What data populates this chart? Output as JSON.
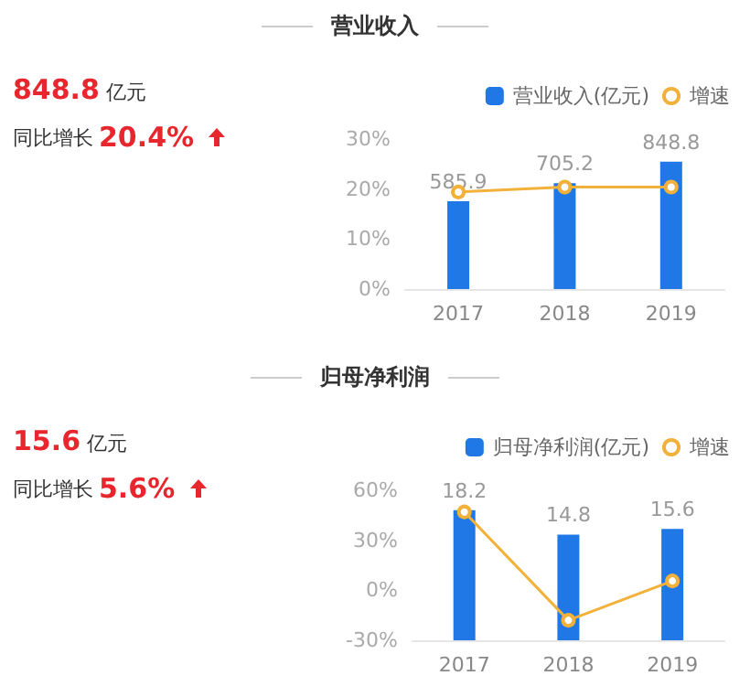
{
  "chart_data": [
    {
      "type": "bar",
      "title": "营业收入",
      "annotations": [
        "848.8 亿元",
        "同比增长 20.4%"
      ],
      "categories": [
        "2017",
        "2018",
        "2019"
      ],
      "legend": "top right",
      "grid": false,
      "ylim": [
        0,
        30
      ],
      "yticks": [
        {
          "value": 0,
          "label": "0%"
        },
        {
          "value": 10,
          "label": "10%"
        },
        {
          "value": 20,
          "label": "20%"
        },
        {
          "value": 30,
          "label": "30%"
        }
      ],
      "series": [
        {
          "name": "营业收入(亿元)",
          "color": "#1f78e6",
          "axis": "y2",
          "values": [
            585.9,
            705.2,
            848.8
          ],
          "value_labels": [
            "585.9",
            "705.2",
            "848.8"
          ]
        },
        {
          "type": "line",
          "name": "增速",
          "color": "#f2b13a",
          "marker": "circle",
          "values": [
            19.4,
            20.4,
            20.4
          ]
        }
      ]
    },
    {
      "type": "bar",
      "title": "归母净利润",
      "annotations": [
        "15.6 亿元",
        "同比增长 5.6%"
      ],
      "categories": [
        "2017",
        "2018",
        "2019"
      ],
      "legend": "top right",
      "grid": false,
      "ylim": [
        -30,
        60
      ],
      "yticks": [
        {
          "value": -30,
          "label": "-30%"
        },
        {
          "value": 0,
          "label": "0%"
        },
        {
          "value": 30,
          "label": "30%"
        },
        {
          "value": 60,
          "label": "60%"
        }
      ],
      "series": [
        {
          "name": "归母净利润(亿元)",
          "color": "#1f78e6",
          "axis": "y2",
          "values": [
            18.2,
            14.8,
            15.6
          ],
          "value_labels": [
            "18.2",
            "14.8",
            "15.6"
          ]
        },
        {
          "type": "line",
          "name": "增速",
          "color": "#f2b13a",
          "marker": "circle",
          "values": [
            47,
            -18,
            5.6
          ]
        }
      ]
    }
  ]
}
